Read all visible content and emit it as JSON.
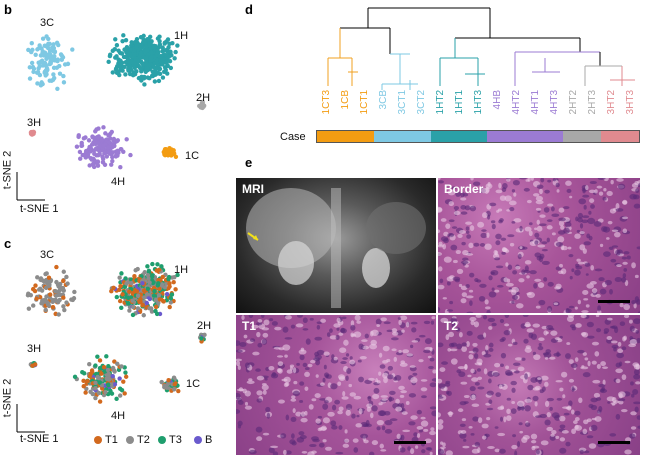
{
  "panels": {
    "b": {
      "label": "b",
      "axis_y": "t-SNE 2",
      "axis_x": "t-SNE 1",
      "clusters": [
        "3C",
        "1H",
        "2H",
        "3H",
        "4H",
        "1C"
      ]
    },
    "c": {
      "label": "c",
      "axis_y": "t-SNE 2",
      "axis_x": "t-SNE 1",
      "clusters": [
        "3C",
        "1H",
        "2H",
        "3H",
        "4H",
        "1C"
      ],
      "legend": [
        "T1",
        "T2",
        "T3",
        "B"
      ]
    },
    "d": {
      "label": "d",
      "case_label": "Case",
      "leaves": [
        "1CT3",
        "1CB",
        "1CT1",
        "3CB",
        "3CT1",
        "3CT2",
        "1HT2",
        "1HT1",
        "1HT3",
        "4HB",
        "4HT2",
        "4HT1",
        "4HT3",
        "2HT2",
        "2HT3",
        "3HT2",
        "3HT3"
      ]
    },
    "e": {
      "label": "e",
      "images": [
        "MRI",
        "Border",
        "T1",
        "T2"
      ]
    }
  },
  "colors": {
    "1C": "#f39c12",
    "3C": "#7ec8e3",
    "1H": "#2aa1a8",
    "4H": "#9b7bd3",
    "2H": "#a8a8a8",
    "3H": "#e08a8f",
    "T1": "#d2691e",
    "T2": "#8c8c8c",
    "T3": "#1f9e6e",
    "B": "#6a5acd"
  }
}
